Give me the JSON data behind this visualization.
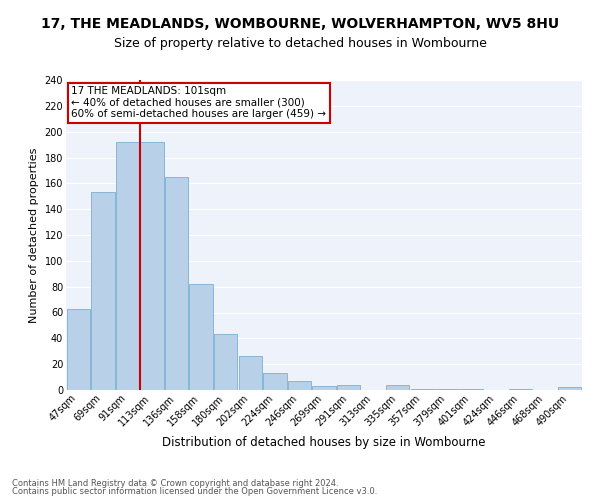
{
  "title": "17, THE MEADLANDS, WOMBOURNE, WOLVERHAMPTON, WV5 8HU",
  "subtitle": "Size of property relative to detached houses in Wombourne",
  "xlabel": "Distribution of detached houses by size in Wombourne",
  "ylabel": "Number of detached properties",
  "categories": [
    "47sqm",
    "69sqm",
    "91sqm",
    "113sqm",
    "136sqm",
    "158sqm",
    "180sqm",
    "202sqm",
    "224sqm",
    "246sqm",
    "269sqm",
    "291sqm",
    "313sqm",
    "335sqm",
    "357sqm",
    "379sqm",
    "401sqm",
    "424sqm",
    "446sqm",
    "468sqm",
    "490sqm"
  ],
  "values": [
    63,
    153,
    192,
    192,
    165,
    82,
    43,
    26,
    13,
    7,
    3,
    4,
    0,
    4,
    1,
    1,
    1,
    0,
    1,
    0,
    2
  ],
  "bar_color": "#b8d0e8",
  "bar_edge_color": "#7aafd4",
  "red_line_x": 2.5,
  "annotation_text": "17 THE MEADLANDS: 101sqm\n← 40% of detached houses are smaller (300)\n60% of semi-detached houses are larger (459) →",
  "annotation_box_color": "#ffffff",
  "annotation_box_edge": "#cc0000",
  "footer1": "Contains HM Land Registry data © Crown copyright and database right 2024.",
  "footer2": "Contains public sector information licensed under the Open Government Licence v3.0.",
  "ylim": [
    0,
    240
  ],
  "yticks": [
    0,
    20,
    40,
    60,
    80,
    100,
    120,
    140,
    160,
    180,
    200,
    220,
    240
  ],
  "bg_color": "#eef2fa",
  "title_fontsize": 10,
  "subtitle_fontsize": 9,
  "ylabel_fontsize": 8,
  "xlabel_fontsize": 8.5,
  "tick_fontsize": 7,
  "annot_fontsize": 7.5
}
